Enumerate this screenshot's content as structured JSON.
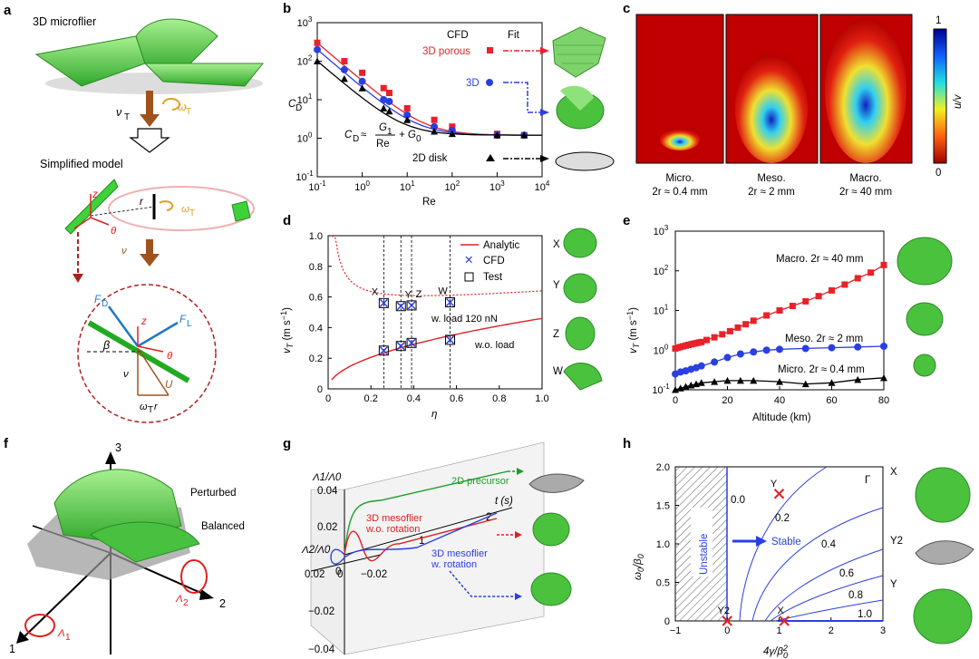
{
  "panels": {
    "a": {
      "label": "a",
      "title": "3D microflier",
      "simplified": "Simplified model",
      "vt": "ν",
      "vt_sub": "T",
      "wt": "ω",
      "wt_sub": "T",
      "z": "z",
      "r": "r",
      "theta": "θ",
      "FD": "F",
      "FD_sub": "D",
      "FL": "F",
      "FL_sub": "L",
      "beta": "β",
      "U": "U",
      "wtr": "ω",
      "wtr_sub": "T",
      "wtr_tail": "r"
    },
    "b": {
      "label": "b",
      "col_cfd": "CFD",
      "col_fit": "Fit",
      "porous": "3D porous",
      "threeD": "3D",
      "disk": "2D disk",
      "eq_lhs": "C",
      "eq_lhs_sub": "D",
      "eq_approx": "≈",
      "eq_num": "G",
      "eq_num_sub": "1",
      "eq_den": "Re",
      "eq_plus": "+ G",
      "eq_plus_sub": "0"
    },
    "c": {
      "label": "c",
      "colorbar_label": "u/v",
      "colorbar_sub": "T",
      "cb_max": "1",
      "cb_min": "0",
      "captions": [
        {
          "name": "Micro.",
          "size": "2r ≈ 0.4 mm"
        },
        {
          "name": "Meso.",
          "size": "2r ≈ 2 mm"
        },
        {
          "name": "Macro.",
          "size": "2r ≈ 40 mm"
        }
      ]
    },
    "d": {
      "label": "d",
      "legend": [
        "Analytic",
        "CFD",
        "Test"
      ],
      "load_on": "w. load 120 nN",
      "load_off": "w.o. load",
      "pts": [
        "X",
        "Y",
        "Z",
        "W"
      ],
      "side": [
        "X",
        "Y",
        "Z",
        "W"
      ]
    },
    "e": {
      "label": "e",
      "macro": "Macro. 2r ≈ 40 mm",
      "meso": "Meso. 2r ≈ 2 mm",
      "micro": "Micro. 2r ≈ 0.4 mm"
    },
    "f": {
      "label": "f",
      "perturbed": "Perturbed",
      "balanced": "Balanced",
      "ax3": "3",
      "ax2": "2",
      "ax1": "1",
      "lam1": "Λ",
      "lam1_sub": "1",
      "lam2": "Λ",
      "lam2_sub": "2"
    },
    "g": {
      "label": "g",
      "yaxis": "Λ1/Λ0",
      "xaxis": "t (s)",
      "zaxis": "Λ2/Λ0",
      "precursor": "2D precursor",
      "meso_no": "3D mesoflier\nw.o. rotation",
      "meso_rot": "3D mesoflier\nw. rotation",
      "y_ticks": [
        "0.04",
        "0.02",
        "0",
        "−0.02",
        "−0.04"
      ],
      "z_ticks": [
        "0.02",
        "0",
        "−0.02"
      ],
      "t_ticks": [
        "1",
        "2"
      ]
    },
    "h": {
      "label": "h",
      "unstable": "Unstable",
      "stable": "Stable",
      "gamma": "Γ",
      "contours": [
        "0.0",
        "0.2",
        "0.4",
        "0.6",
        "0.8",
        "1.0"
      ],
      "pts": [
        "Y",
        "X",
        "Y2"
      ],
      "side": [
        "X",
        "Y2",
        "Y"
      ]
    }
  },
  "chart_data": [
    {
      "panel": "b",
      "type": "line",
      "xscale": "log",
      "yscale": "log",
      "xlabel": "Re",
      "ylabel": "C_D",
      "xlim": [
        0.1,
        10000
      ],
      "ylim": [
        0.1,
        1000
      ],
      "xticks": [
        "10^-1",
        "10^0",
        "10^1",
        "10^2",
        "10^3",
        "10^4"
      ],
      "yticks": [
        "10^-1",
        "10^0",
        "10^1",
        "10^2",
        "10^3"
      ],
      "series": [
        {
          "name": "3D porous",
          "color": "#e8222a",
          "marker": "square",
          "x": [
            0.1,
            0.4,
            1,
            3,
            4,
            10,
            40,
            100,
            1000,
            4000
          ],
          "y": [
            300,
            100,
            50,
            20,
            15,
            6,
            3,
            2,
            1.3,
            1.2
          ]
        },
        {
          "name": "3D",
          "color": "#2a3fe0",
          "marker": "circle",
          "x": [
            0.1,
            0.4,
            1,
            3,
            4,
            10,
            40,
            100,
            1000,
            4000
          ],
          "y": [
            200,
            60,
            30,
            10,
            9,
            4,
            2,
            1.6,
            1.2,
            1.2
          ]
        },
        {
          "name": "2D disk",
          "color": "#000000",
          "marker": "triangle",
          "x": [
            0.1,
            0.4,
            1,
            3,
            4,
            10,
            40,
            100,
            1000,
            4000
          ],
          "y": [
            100,
            35,
            20,
            6,
            5,
            3,
            1.5,
            1.3,
            1.2,
            1.2
          ]
        }
      ]
    },
    {
      "panel": "d",
      "type": "line",
      "xlabel": "η",
      "ylabel": "v_T (m s^-1)",
      "xlim": [
        0,
        1
      ],
      "ylim": [
        0,
        1
      ],
      "xticks": [
        "0",
        "0.2",
        "0.4",
        "0.6",
        "0.8",
        "1.0"
      ],
      "yticks": [
        "0",
        "0.2",
        "0.4",
        "0.6",
        "0.8",
        "1.0"
      ],
      "series": [
        {
          "name": "w. load 120 nN",
          "x": [
            0.26,
            0.34,
            0.39,
            0.57
          ],
          "y": [
            0.56,
            0.54,
            0.545,
            0.565
          ]
        },
        {
          "name": "w.o. load",
          "x": [
            0.26,
            0.34,
            0.39,
            0.57
          ],
          "y": [
            0.25,
            0.28,
            0.3,
            0.32
          ]
        }
      ]
    },
    {
      "panel": "e",
      "type": "line",
      "yscale": "log",
      "xlabel": "Altitude (km)",
      "ylabel": "v_T (m s^-1)",
      "xlim": [
        0,
        80
      ],
      "ylim": [
        0.1,
        1000
      ],
      "xticks": [
        "0",
        "20",
        "40",
        "60",
        "80"
      ],
      "yticks": [
        "10^-1",
        "10^0",
        "10^1",
        "10^2",
        "10^3"
      ],
      "series": [
        {
          "name": "Macro. 2r ≈ 40 mm",
          "color": "#e8222a",
          "marker": "square",
          "x": [
            0,
            1,
            2,
            3,
            4,
            5,
            6,
            7,
            8,
            9,
            10,
            12,
            15,
            18,
            21,
            24,
            27,
            30,
            35,
            40,
            45,
            50,
            55,
            60,
            65,
            70,
            75,
            80
          ],
          "y": [
            1.1,
            1.15,
            1.2,
            1.25,
            1.3,
            1.35,
            1.4,
            1.45,
            1.5,
            1.55,
            1.6,
            1.8,
            2.1,
            2.5,
            3,
            3.7,
            4.5,
            5.5,
            7.5,
            10,
            13,
            17,
            23,
            32,
            45,
            65,
            90,
            140
          ]
        },
        {
          "name": "Meso. 2r ≈ 2 mm",
          "color": "#2a3fe0",
          "marker": "circle",
          "x": [
            0,
            2,
            4,
            6,
            8,
            10,
            15,
            20,
            25,
            30,
            35,
            40,
            50,
            60,
            70,
            80
          ],
          "y": [
            0.25,
            0.28,
            0.3,
            0.33,
            0.36,
            0.4,
            0.5,
            0.65,
            0.8,
            0.9,
            1.0,
            1.05,
            1.1,
            1.15,
            1.2,
            1.25
          ]
        },
        {
          "name": "Micro. 2r ≈ 0.4 mm",
          "color": "#000000",
          "marker": "triangle",
          "x": [
            0,
            2,
            4,
            6,
            8,
            10,
            15,
            20,
            25,
            30,
            40,
            50,
            60,
            70,
            80
          ],
          "y": [
            0.1,
            0.11,
            0.12,
            0.13,
            0.14,
            0.15,
            0.16,
            0.17,
            0.17,
            0.17,
            0.16,
            0.14,
            0.15,
            0.18,
            0.2
          ]
        }
      ]
    },
    {
      "panel": "h",
      "type": "line",
      "xlabel": "4γ/β0^2",
      "ylabel": "ω0/β0",
      "xlim": [
        -1,
        3
      ],
      "ylim": [
        0,
        2
      ],
      "xticks": [
        "−1",
        "0",
        "1",
        "2",
        "3"
      ],
      "yticks": [
        "0",
        "0.5",
        "1.0",
        "1.5",
        "2.0"
      ],
      "points": [
        {
          "name": "Y",
          "x": 1.0,
          "y": 1.65
        },
        {
          "name": "X",
          "x": 1.1,
          "y": 0.0
        },
        {
          "name": "Y2",
          "x": 0.0,
          "y": 0.0
        }
      ]
    }
  ]
}
